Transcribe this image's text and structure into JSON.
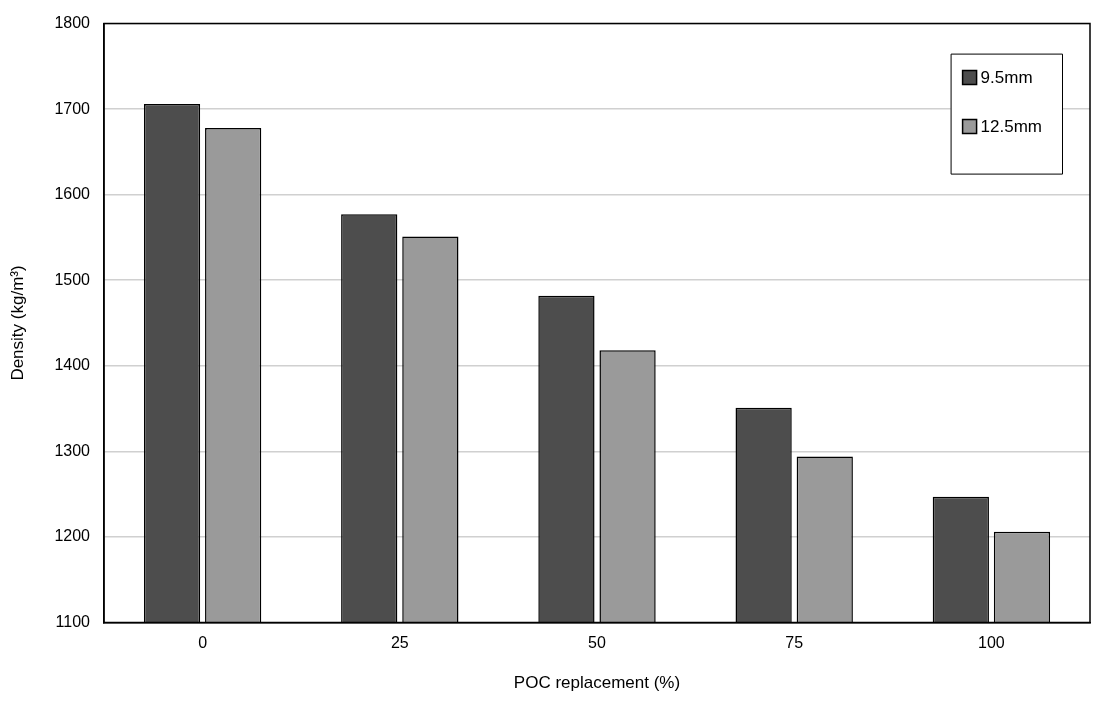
{
  "chart_data": {
    "type": "bar",
    "xlabel": "POC replacement (%)",
    "ylabel": "Density (kg/m³)",
    "categories": [
      "0",
      "25",
      "50",
      "75",
      "100"
    ],
    "series": [
      {
        "name": "9.5mm",
        "color": "#4d4d4d",
        "values": [
          1706,
          1577,
          1482,
          1351,
          1247
        ]
      },
      {
        "name": "12.5mm",
        "color": "#9a9a9a",
        "values": [
          1678,
          1551,
          1418,
          1294,
          1206
        ]
      }
    ],
    "ylim": [
      1100,
      1800
    ],
    "yticks": [
      1100,
      1200,
      1300,
      1400,
      1500,
      1600,
      1700,
      1800
    ],
    "grid": "y",
    "legend": "top right"
  }
}
